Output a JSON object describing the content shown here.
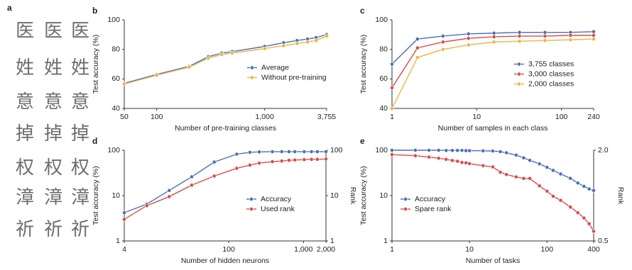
{
  "panel_a": {
    "label": "a",
    "characters": [
      [
        "医",
        "医",
        "医"
      ],
      [
        "姓",
        "姓",
        "姓"
      ],
      [
        "意",
        "意",
        "意"
      ],
      [
        "掉",
        "掉",
        "掉"
      ],
      [
        "权",
        "权",
        "权"
      ],
      [
        "漳",
        "漳",
        "漳"
      ],
      [
        "祈",
        "祈",
        "祈"
      ]
    ]
  },
  "chart_data": [
    {
      "type": "line",
      "panel_label": "b",
      "xlabel": "Number of pre-training classes",
      "ylabel": "Test accuracy (%)",
      "xscale": "log",
      "x": [
        50,
        100,
        200,
        300,
        400,
        500,
        1000,
        1500,
        2000,
        2500,
        3000,
        3755
      ],
      "xlim": [
        50,
        3755
      ],
      "xticks": [
        50,
        100,
        {
          "value": 1000,
          "label": "1,000"
        },
        {
          "value": 3755,
          "label": "3,755"
        }
      ],
      "ylim": [
        40,
        100
      ],
      "yticks": [
        40,
        60,
        80,
        100
      ],
      "legend": "center right",
      "series": [
        {
          "name": "Average",
          "color": "#4a6fb8",
          "values": [
            57,
            63,
            68.5,
            75,
            77.5,
            78.5,
            82,
            84.5,
            86,
            87,
            88,
            90
          ]
        },
        {
          "name": "Without pre-training",
          "color": "#f1b43c",
          "values": [
            56.5,
            62.5,
            68,
            74,
            76.5,
            77.5,
            80.5,
            82.5,
            84,
            85,
            86,
            89
          ]
        }
      ]
    },
    {
      "type": "line",
      "panel_label": "c",
      "xlabel": "Number of samples in each class",
      "ylabel": "Test accuracy (%)",
      "xscale": "log",
      "x": [
        1,
        2,
        4,
        8,
        16,
        32,
        64,
        128,
        240
      ],
      "xlim": [
        1,
        240
      ],
      "xticks": [
        1,
        10,
        100,
        240
      ],
      "ylim": [
        40,
        100
      ],
      "yticks": [
        40,
        60,
        80,
        100
      ],
      "legend": "center right",
      "series": [
        {
          "name": "3,755 classes",
          "color": "#4a6fb8",
          "values": [
            70,
            87,
            89,
            90.5,
            91,
            91.5,
            91.5,
            91.5,
            92
          ]
        },
        {
          "name": "3,000 classes",
          "color": "#e04848",
          "values": [
            54,
            81,
            85,
            87.5,
            88.5,
            89,
            89,
            89.5,
            89.5
          ]
        },
        {
          "name": "2,000 classes",
          "color": "#f1b43c",
          "values": [
            40,
            74.5,
            80,
            83,
            85,
            85.5,
            86,
            86.5,
            87
          ]
        }
      ]
    },
    {
      "type": "line",
      "panel_label": "d",
      "xlabel": "Number of hidden neurons",
      "ylabel": "Test accuracy (%)",
      "y2label": "Rank",
      "xscale": "log",
      "yscale": "log",
      "y2scale": "log",
      "x": [
        4,
        8,
        16,
        32,
        64,
        128,
        192,
        256,
        384,
        512,
        640,
        768,
        1024,
        1280,
        1536,
        2000
      ],
      "xlim": [
        4,
        2000
      ],
      "xticks": [
        4,
        100,
        {
          "value": 1000,
          "label": "1,000"
        },
        {
          "value": 2000,
          "label": "2,000"
        }
      ],
      "ylim": [
        1,
        100
      ],
      "yticks": [
        1,
        10,
        100
      ],
      "y2lim": [
        1,
        100
      ],
      "y2ticks": [
        1,
        10,
        100
      ],
      "legend": "center right",
      "series": [
        {
          "name": "Accuracy",
          "color": "#4a6fb8",
          "values": [
            4.2,
            6.5,
            13,
            26,
            55,
            82,
            90,
            92,
            93,
            93,
            93,
            93,
            93,
            93,
            93,
            93
          ]
        },
        {
          "name": "Used rank",
          "color": "#e04848",
          "axis": "y2",
          "values": [
            3,
            6,
            9.5,
            17,
            27,
            40,
            47,
            52,
            56,
            58,
            60,
            61,
            62,
            63,
            63,
            64
          ]
        }
      ]
    },
    {
      "type": "line",
      "panel_label": "e",
      "xlabel": "Number of tasks",
      "ylabel": "Test accuracy (%)",
      "y2label": "Rank",
      "xscale": "log",
      "yscale": "log",
      "y2scale": "log",
      "x": [
        1,
        2,
        3,
        4,
        5,
        6,
        7,
        8,
        9,
        10,
        15,
        20,
        25,
        30,
        40,
        50,
        60,
        80,
        100,
        120,
        150,
        200,
        250,
        300,
        350,
        400
      ],
      "xlim": [
        1,
        400
      ],
      "xticks": [
        1,
        10,
        100,
        400
      ],
      "ylim": [
        1,
        100
      ],
      "yticks": [
        1,
        10,
        100
      ],
      "y2lim": [
        0.5,
        2
      ],
      "y2ticks": [
        0.5,
        {
          "value": 2,
          "label": "2.0"
        }
      ],
      "legend": "center left",
      "series": [
        {
          "name": "Accuracy",
          "color": "#4a6fb8",
          "values": [
            100,
            100,
            100,
            100,
            99,
            99,
            99,
            99,
            98,
            98,
            97,
            96,
            93,
            88,
            78,
            68,
            60,
            50,
            42,
            36,
            30,
            24,
            19,
            16,
            14,
            13
          ]
        },
        {
          "name": "Spare rank",
          "color": "#e04848",
          "axis": "y2",
          "values": [
            1.87,
            1.84,
            1.8,
            1.77,
            1.74,
            1.71,
            1.69,
            1.66,
            1.65,
            1.63,
            1.58,
            1.55,
            1.43,
            1.38,
            1.33,
            1.3,
            1.3,
            1.16,
            1.07,
            0.99,
            0.93,
            0.84,
            0.77,
            0.71,
            0.65,
            0.58
          ]
        }
      ]
    }
  ]
}
